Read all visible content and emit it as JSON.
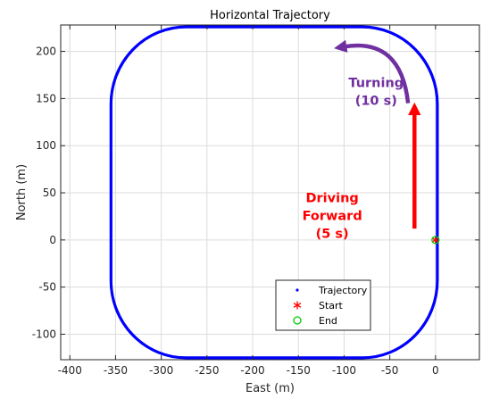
{
  "chart_data": {
    "type": "scatter",
    "title": "Horizontal Trajectory",
    "xlabel": "East (m)",
    "ylabel": "North (m)",
    "xlim": [
      -410,
      48
    ],
    "ylim": [
      -127,
      228
    ],
    "xticks": [
      -400,
      -350,
      -300,
      -250,
      -200,
      -150,
      -100,
      -50,
      0
    ],
    "yticks": [
      -100,
      -50,
      0,
      50,
      100,
      150,
      200
    ],
    "xtick_labels": [
      "-400",
      "-350",
      "-300",
      "-250",
      "-200",
      "-150",
      "-100",
      "-50",
      "0"
    ],
    "ytick_labels": [
      "-100",
      "-50",
      "0",
      "50",
      "100",
      "150",
      "200"
    ],
    "grid": true,
    "legend_position": "bottom-center",
    "series": [
      {
        "name": "Trajectory",
        "marker": "dot",
        "color": "#0000ff",
        "shape": {
          "type": "rounded-rectangle",
          "x_range": [
            -355,
            2
          ],
          "y_range": [
            -125,
            226
          ],
          "corner_radius": 82
        }
      },
      {
        "name": "Start",
        "marker": "asterisk",
        "color": "#ff0000",
        "x": [
          0
        ],
        "y": [
          0
        ]
      },
      {
        "name": "End",
        "marker": "circle",
        "color": "#00cc00",
        "x": [
          0
        ],
        "y": [
          0
        ]
      }
    ],
    "annotations": [
      {
        "lines": [
          "Turning",
          "(10 s)"
        ],
        "color": "#7030a0",
        "text_anchor": [
          -65,
          162
        ],
        "arrow": {
          "type": "curved",
          "from": [
            -30,
            145
          ],
          "to": [
            -100,
            205
          ]
        }
      },
      {
        "lines": [
          "Driving",
          "Forward",
          "(5 s)"
        ],
        "color": "#ff0000",
        "text_anchor": [
          -113,
          40
        ],
        "arrow": {
          "type": "straight",
          "from": [
            -23,
            12
          ],
          "to": [
            -23,
            135
          ]
        }
      }
    ]
  }
}
